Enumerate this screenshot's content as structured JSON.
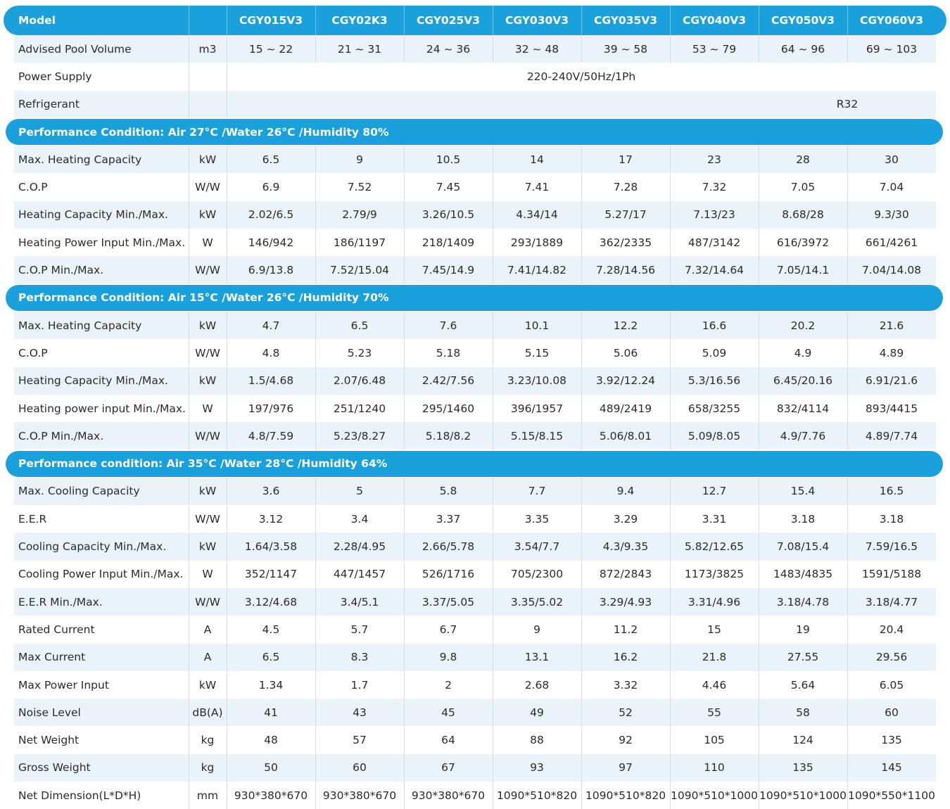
{
  "header": {
    "label": "Model",
    "models": [
      "CGY015V3",
      "CGY02K3",
      "CGY025V3",
      "CGY030V3",
      "CGY035V3",
      "CGY040V3",
      "CGY050V3",
      "CGY060V3"
    ]
  },
  "groups": [
    {
      "rows": [
        {
          "label": "Advised Pool Volume",
          "unit": "m3",
          "values": [
            "15 ~ 22",
            "21 ~ 31",
            "24 ~ 36",
            "32 ~ 48",
            "39 ~ 58",
            "53 ~ 79",
            "64 ~ 96",
            "69 ~ 103"
          ]
        },
        {
          "label": "Power Supply",
          "value": "220-240V/50Hz/1Ph"
        },
        {
          "label": "Refrigerant",
          "value": "R32"
        }
      ]
    },
    {
      "title": "Performance Condition: Air 27°C /Water 26°C /Humidity 80%",
      "rows": [
        {
          "label": "Max. Heating Capacity",
          "unit": "kW",
          "values": [
            "6.5",
            "9",
            "10.5",
            "14",
            "17",
            "23",
            "28",
            "30"
          ]
        },
        {
          "label": "C.O.P",
          "unit": "W/W",
          "values": [
            "6.9",
            "7.52",
            "7.45",
            "7.41",
            "7.28",
            "7.32",
            "7.05",
            "7.04"
          ]
        },
        {
          "label": "Heating Capacity Min./Max.",
          "unit": "kW",
          "values": [
            "2.02/6.5",
            "2.79/9",
            "3.26/10.5",
            "4.34/14",
            "5.27/17",
            "7.13/23",
            "8.68/28",
            "9.3/30"
          ]
        },
        {
          "label": "Heating Power Input Min./Max.",
          "unit": "W",
          "values": [
            "146/942",
            "186/1197",
            "218/1409",
            "293/1889",
            "362/2335",
            "487/3142",
            "616/3972",
            "661/4261"
          ]
        },
        {
          "label": "C.O.P Min./Max.",
          "unit": "W/W",
          "values": [
            "6.9/13.8",
            "7.52/15.04",
            "7.45/14.9",
            "7.41/14.82",
            "7.28/14.56",
            "7.32/14.64",
            "7.05/14.1",
            "7.04/14.08"
          ]
        }
      ]
    },
    {
      "title": "Performance Condition: Air 15°C /Water 26°C /Humidity 70%",
      "rows": [
        {
          "label": "Max. Heating Capacity",
          "unit": "kW",
          "values": [
            "4.7",
            "6.5",
            "7.6",
            "10.1",
            "12.2",
            "16.6",
            "20.2",
            "21.6"
          ]
        },
        {
          "label": "C.O.P",
          "unit": "W/W",
          "values": [
            "4.8",
            "5.23",
            "5.18",
            "5.15",
            "5.06",
            "5.09",
            "4.9",
            "4.89"
          ]
        },
        {
          "label": "Heating Capacity Min./Max.",
          "unit": "kW",
          "values": [
            "1.5/4.68",
            "2.07/6.48",
            "2.42/7.56",
            "3.23/10.08",
            "3.92/12.24",
            "5.3/16.56",
            "6.45/20.16",
            "6.91/21.6"
          ]
        },
        {
          "label": "Heating power input Min./Max.",
          "unit": "W",
          "values": [
            "197/976",
            "251/1240",
            "295/1460",
            "396/1957",
            "489/2419",
            "658/3255",
            "832/4114",
            "893/4415"
          ]
        },
        {
          "label": "C.O.P Min./Max.",
          "unit": "W/W",
          "values": [
            "4.8/7.59",
            "5.23/8.27",
            "5.18/8.2",
            "5.15/8.15",
            "5.06/8.01",
            "5.09/8.05",
            "4.9/7.76",
            "4.89/7.74"
          ]
        }
      ]
    },
    {
      "title": "Performance condition: Air 35°C /Water 28°C /Humidity 64%",
      "rows": [
        {
          "label": "Max. Cooling Capacity",
          "unit": "kW",
          "values": [
            "3.6",
            "5",
            "5.8",
            "7.7",
            "9.4",
            "12.7",
            "15.4",
            "16.5"
          ]
        },
        {
          "label": "E.E.R",
          "unit": "W/W",
          "values": [
            "3.12",
            "3.4",
            "3.37",
            "3.35",
            "3.29",
            "3.31",
            "3.18",
            "3.18"
          ]
        },
        {
          "label": "Cooling Capacity Min./Max.",
          "unit": "kW",
          "values": [
            "1.64/3.58",
            "2.28/4.95",
            "2.66/5.78",
            "3.54/7.7",
            "4.3/9.35",
            "5.82/12.65",
            "7.08/15.4",
            "7.59/16.5"
          ]
        },
        {
          "label": "Cooling Power Input Min./Max.",
          "unit": "W",
          "values": [
            "352/1147",
            "447/1457",
            "526/1716",
            "705/2300",
            "872/2843",
            "1173/3825",
            "1483/4835",
            "1591/5188"
          ]
        },
        {
          "label": "E.E.R Min./Max.",
          "unit": "W/W",
          "values": [
            "3.12/4.68",
            "3.4/5.1",
            "3.37/5.05",
            "3.35/5.02",
            "3.29/4.93",
            "3.31/4.96",
            "3.18/4.78",
            "3.18/4.77"
          ]
        },
        {
          "label": "Rated Current",
          "unit": "A",
          "values": [
            "4.5",
            "5.7",
            "6.7",
            "9",
            "11.2",
            "15",
            "19",
            "20.4"
          ]
        },
        {
          "label": "Max Current",
          "unit": "A",
          "values": [
            "6.5",
            "8.3",
            "9.8",
            "13.1",
            "16.2",
            "21.8",
            "27.55",
            "29.56"
          ]
        },
        {
          "label": "Max Power Input",
          "unit": "kW",
          "values": [
            "1.34",
            "1.7",
            "2",
            "2.68",
            "3.32",
            "4.46",
            "5.64",
            "6.05"
          ]
        },
        {
          "label": "Noise Level",
          "unit": "dB(A)",
          "values": [
            "41",
            "43",
            "45",
            "49",
            "52",
            "55",
            "58",
            "60"
          ]
        },
        {
          "label": "Net Weight",
          "unit": "kg",
          "values": [
            "48",
            "57",
            "64",
            "88",
            "92",
            "105",
            "124",
            "135"
          ]
        },
        {
          "label": "Gross Weight",
          "unit": "kg",
          "values": [
            "50",
            "60",
            "67",
            "93",
            "97",
            "110",
            "135",
            "145"
          ]
        },
        {
          "label": "Net Dimension(L*D*H)",
          "unit": "mm",
          "values": [
            "930*380*670",
            "930*380*670",
            "930*380*670",
            "1090*510*820",
            "1090*510*820",
            "1090*510*1000",
            "1090*510*1000",
            "1090*550*1100"
          ]
        }
      ]
    }
  ]
}
